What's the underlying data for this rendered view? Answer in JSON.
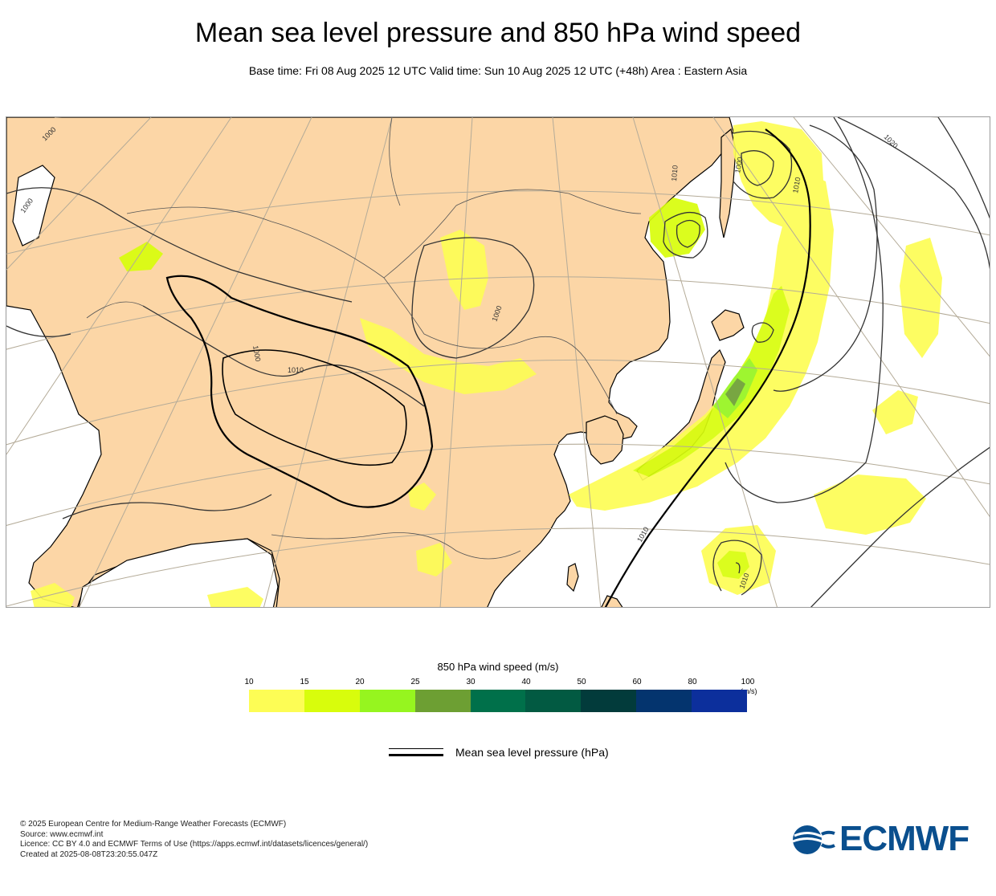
{
  "title": "Mean sea level pressure and 850 hPa wind speed",
  "subtitle": "Base time: Fri 08 Aug 2025 12 UTC Valid time: Sun 10 Aug 2025 12 UTC (+48h) Area : Eastern Asia",
  "map": {
    "contour_labels": [
      "1000",
      "1000",
      "1000",
      "1010",
      "1000",
      "1010",
      "1000",
      "1010",
      "1020",
      "1010",
      "1010"
    ],
    "colors": {
      "land": "#fcd6a6",
      "ocean": "#ffffff",
      "graticule": "#b4ab98",
      "contour": "#333333",
      "coast": "#000000"
    }
  },
  "legend": {
    "wind_title": "850 hPa wind speed (m/s)",
    "ticks": [
      "10",
      "15",
      "20",
      "25",
      "30",
      "40",
      "50",
      "60",
      "80",
      "100"
    ],
    "unit": "(m/s)",
    "colors": [
      "#fdfd55",
      "#d8fd0c",
      "#96f51f",
      "#6d9f33",
      "#00704a",
      "#025a42",
      "#023b3b",
      "#04346e",
      "#0c2f9c"
    ],
    "mslp_label": "Mean sea level pressure (hPa)"
  },
  "footer": {
    "copyright": "© 2025 European Centre for Medium-Range Weather Forecasts (ECMWF)",
    "source": "Source: www.ecmwf.int",
    "licence": "Licence: CC BY 4.0 and ECMWF Terms of Use (https://apps.ecmwf.int/datasets/licences/general/)",
    "created": "Created at 2025-08-08T23:20:55.047Z"
  },
  "logo": {
    "text": "ECMWF",
    "color": "#0a4f8e"
  }
}
